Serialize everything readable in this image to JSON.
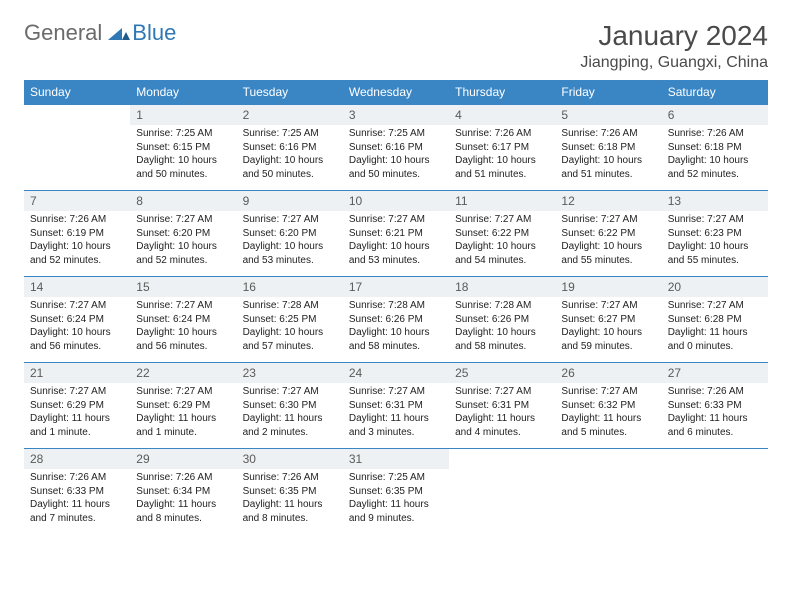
{
  "logo": {
    "general": "General",
    "blue": "Blue",
    "mark_color": "#2f78b5"
  },
  "title": "January 2024",
  "location": "Jiangping, Guangxi, China",
  "colors": {
    "header_bg": "#3a86c5",
    "header_text": "#ffffff",
    "daynum_bg": "#eef1f3",
    "border": "#3a86c5",
    "text": "#222222",
    "title_text": "#4a4a4a"
  },
  "weekdays": [
    "Sunday",
    "Monday",
    "Tuesday",
    "Wednesday",
    "Thursday",
    "Friday",
    "Saturday"
  ],
  "weeks": [
    [
      null,
      {
        "n": "1",
        "sr": "Sunrise: 7:25 AM",
        "ss": "Sunset: 6:15 PM",
        "dl": "Daylight: 10 hours and 50 minutes."
      },
      {
        "n": "2",
        "sr": "Sunrise: 7:25 AM",
        "ss": "Sunset: 6:16 PM",
        "dl": "Daylight: 10 hours and 50 minutes."
      },
      {
        "n": "3",
        "sr": "Sunrise: 7:25 AM",
        "ss": "Sunset: 6:16 PM",
        "dl": "Daylight: 10 hours and 50 minutes."
      },
      {
        "n": "4",
        "sr": "Sunrise: 7:26 AM",
        "ss": "Sunset: 6:17 PM",
        "dl": "Daylight: 10 hours and 51 minutes."
      },
      {
        "n": "5",
        "sr": "Sunrise: 7:26 AM",
        "ss": "Sunset: 6:18 PM",
        "dl": "Daylight: 10 hours and 51 minutes."
      },
      {
        "n": "6",
        "sr": "Sunrise: 7:26 AM",
        "ss": "Sunset: 6:18 PM",
        "dl": "Daylight: 10 hours and 52 minutes."
      }
    ],
    [
      {
        "n": "7",
        "sr": "Sunrise: 7:26 AM",
        "ss": "Sunset: 6:19 PM",
        "dl": "Daylight: 10 hours and 52 minutes."
      },
      {
        "n": "8",
        "sr": "Sunrise: 7:27 AM",
        "ss": "Sunset: 6:20 PM",
        "dl": "Daylight: 10 hours and 52 minutes."
      },
      {
        "n": "9",
        "sr": "Sunrise: 7:27 AM",
        "ss": "Sunset: 6:20 PM",
        "dl": "Daylight: 10 hours and 53 minutes."
      },
      {
        "n": "10",
        "sr": "Sunrise: 7:27 AM",
        "ss": "Sunset: 6:21 PM",
        "dl": "Daylight: 10 hours and 53 minutes."
      },
      {
        "n": "11",
        "sr": "Sunrise: 7:27 AM",
        "ss": "Sunset: 6:22 PM",
        "dl": "Daylight: 10 hours and 54 minutes."
      },
      {
        "n": "12",
        "sr": "Sunrise: 7:27 AM",
        "ss": "Sunset: 6:22 PM",
        "dl": "Daylight: 10 hours and 55 minutes."
      },
      {
        "n": "13",
        "sr": "Sunrise: 7:27 AM",
        "ss": "Sunset: 6:23 PM",
        "dl": "Daylight: 10 hours and 55 minutes."
      }
    ],
    [
      {
        "n": "14",
        "sr": "Sunrise: 7:27 AM",
        "ss": "Sunset: 6:24 PM",
        "dl": "Daylight: 10 hours and 56 minutes."
      },
      {
        "n": "15",
        "sr": "Sunrise: 7:27 AM",
        "ss": "Sunset: 6:24 PM",
        "dl": "Daylight: 10 hours and 56 minutes."
      },
      {
        "n": "16",
        "sr": "Sunrise: 7:28 AM",
        "ss": "Sunset: 6:25 PM",
        "dl": "Daylight: 10 hours and 57 minutes."
      },
      {
        "n": "17",
        "sr": "Sunrise: 7:28 AM",
        "ss": "Sunset: 6:26 PM",
        "dl": "Daylight: 10 hours and 58 minutes."
      },
      {
        "n": "18",
        "sr": "Sunrise: 7:28 AM",
        "ss": "Sunset: 6:26 PM",
        "dl": "Daylight: 10 hours and 58 minutes."
      },
      {
        "n": "19",
        "sr": "Sunrise: 7:27 AM",
        "ss": "Sunset: 6:27 PM",
        "dl": "Daylight: 10 hours and 59 minutes."
      },
      {
        "n": "20",
        "sr": "Sunrise: 7:27 AM",
        "ss": "Sunset: 6:28 PM",
        "dl": "Daylight: 11 hours and 0 minutes."
      }
    ],
    [
      {
        "n": "21",
        "sr": "Sunrise: 7:27 AM",
        "ss": "Sunset: 6:29 PM",
        "dl": "Daylight: 11 hours and 1 minute."
      },
      {
        "n": "22",
        "sr": "Sunrise: 7:27 AM",
        "ss": "Sunset: 6:29 PM",
        "dl": "Daylight: 11 hours and 1 minute."
      },
      {
        "n": "23",
        "sr": "Sunrise: 7:27 AM",
        "ss": "Sunset: 6:30 PM",
        "dl": "Daylight: 11 hours and 2 minutes."
      },
      {
        "n": "24",
        "sr": "Sunrise: 7:27 AM",
        "ss": "Sunset: 6:31 PM",
        "dl": "Daylight: 11 hours and 3 minutes."
      },
      {
        "n": "25",
        "sr": "Sunrise: 7:27 AM",
        "ss": "Sunset: 6:31 PM",
        "dl": "Daylight: 11 hours and 4 minutes."
      },
      {
        "n": "26",
        "sr": "Sunrise: 7:27 AM",
        "ss": "Sunset: 6:32 PM",
        "dl": "Daylight: 11 hours and 5 minutes."
      },
      {
        "n": "27",
        "sr": "Sunrise: 7:26 AM",
        "ss": "Sunset: 6:33 PM",
        "dl": "Daylight: 11 hours and 6 minutes."
      }
    ],
    [
      {
        "n": "28",
        "sr": "Sunrise: 7:26 AM",
        "ss": "Sunset: 6:33 PM",
        "dl": "Daylight: 11 hours and 7 minutes."
      },
      {
        "n": "29",
        "sr": "Sunrise: 7:26 AM",
        "ss": "Sunset: 6:34 PM",
        "dl": "Daylight: 11 hours and 8 minutes."
      },
      {
        "n": "30",
        "sr": "Sunrise: 7:26 AM",
        "ss": "Sunset: 6:35 PM",
        "dl": "Daylight: 11 hours and 8 minutes."
      },
      {
        "n": "31",
        "sr": "Sunrise: 7:25 AM",
        "ss": "Sunset: 6:35 PM",
        "dl": "Daylight: 11 hours and 9 minutes."
      },
      null,
      null,
      null
    ]
  ]
}
